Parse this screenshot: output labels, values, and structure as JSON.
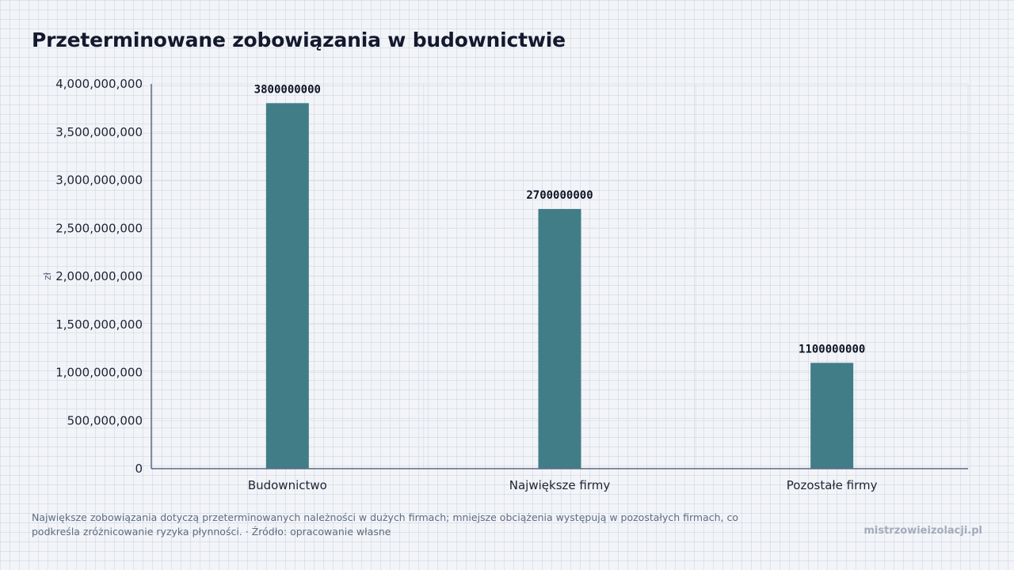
{
  "title": "Przeterminowane zobowiązania w budownictwie",
  "caption": {
    "text": "Największe zobowiązania dotyczą przeterminowanych należności w dużych firmach; mniejsze obciążenia występują w pozostałych firmach, co podkreśla zróżnicowanie ryzyka płynności. · Źródło: opracowanie własne"
  },
  "brand": "mistrzowieizolacji.pl",
  "chart_data": {
    "type": "bar",
    "title": "Przeterminowane zobowiązania w budownictwie",
    "categories": [
      "Budownictwo",
      "Największe firmy",
      "Pozostałe firmy"
    ],
    "values": [
      3800000000,
      2700000000,
      1100000000
    ],
    "data_labels": [
      "3800000000",
      "2700000000",
      "1100000000"
    ],
    "xlabel": "",
    "ylabel": "zł",
    "ylim": [
      0,
      4000000000
    ],
    "yticks": [
      0,
      500000000,
      1000000000,
      1500000000,
      2000000000,
      2500000000,
      3000000000,
      3500000000,
      4000000000
    ],
    "ytick_labels": [
      "0",
      "500,000,000",
      "1,000,000,000",
      "1,500,000,000",
      "2,000,000,000",
      "2,500,000,000",
      "3,000,000,000",
      "3,500,000,000",
      "4,000,000,000"
    ],
    "grid": true,
    "legend": "none",
    "bar_color": "#417d87",
    "axis_color": "#5d6886",
    "grid_color": "#dfe3ea"
  }
}
